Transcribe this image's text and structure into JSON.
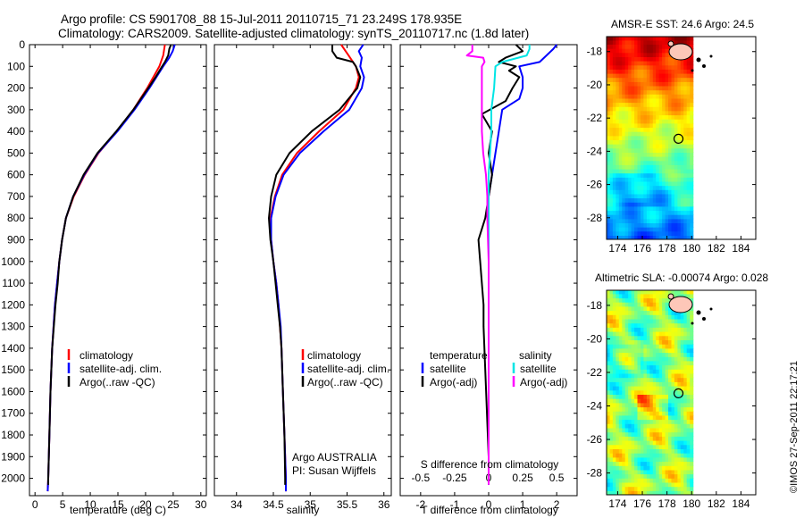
{
  "title": {
    "line1": "Argo profile: CS 5901708_88 15-Jul-2011 20110715_71 23.249S 178.935E",
    "line2": "Climatology: CARS2009. Satellite-adjusted climatology: synTS_20110717.nc (1.8d later)"
  },
  "colors": {
    "climatology": "#ff0000",
    "satellite": "#0000ff",
    "argo": "#000000",
    "salinity_satellite": "#00e5e5",
    "salinity_argo": "#ff00ff"
  },
  "stamp": "©IMOS 27-Sep-2011 22:17:21",
  "chart_data": [
    {
      "type": "line",
      "id": "temperature-profile",
      "xlabel": "temperature (deg C)",
      "ylabel": "depth",
      "xlim": [
        -1,
        31
      ],
      "ylim": [
        2080,
        0
      ],
      "x_ticks": [
        0,
        5,
        10,
        15,
        20,
        25,
        30
      ],
      "y_ticks": [
        0,
        100,
        200,
        300,
        400,
        500,
        600,
        700,
        800,
        900,
        1000,
        1100,
        1200,
        1300,
        1400,
        1500,
        1600,
        1700,
        1800,
        1900,
        2000
      ],
      "legend": [
        "climatology",
        "satellite-adj. clim.",
        "Argo(..raw -QC)"
      ],
      "series": [
        {
          "name": "climatology",
          "color": "#ff0000",
          "depth": [
            0,
            50,
            100,
            200,
            300,
            400,
            500,
            600,
            700,
            800,
            900,
            1000,
            1100,
            1200,
            1400,
            1600,
            1800,
            2000,
            2060
          ],
          "values": [
            23.5,
            23.2,
            22.5,
            20.3,
            17.8,
            14.8,
            11.5,
            9.0,
            7.0,
            5.6,
            4.9,
            4.4,
            4.0,
            3.6,
            3.1,
            2.8,
            2.6,
            2.4,
            2.3
          ]
        },
        {
          "name": "satellite-adj. clim.",
          "color": "#0000ff",
          "depth": [
            0,
            30,
            60,
            100,
            200,
            300,
            400,
            500,
            600,
            700,
            800,
            900,
            1000,
            1100,
            1200,
            1400,
            1600,
            1800,
            2000,
            2060
          ],
          "values": [
            25.3,
            24.9,
            24.3,
            23.2,
            20.7,
            18.0,
            14.9,
            11.4,
            8.9,
            6.9,
            5.6,
            4.9,
            4.4,
            4.0,
            3.6,
            3.1,
            2.8,
            2.6,
            2.4,
            2.3
          ]
        },
        {
          "name": "Argo(..raw -QC)",
          "color": "#000000",
          "depth": [
            0,
            20,
            50,
            80,
            100,
            150,
            200,
            300,
            400,
            500,
            600,
            700,
            800,
            900,
            1000,
            1100,
            1200,
            1400,
            1600,
            1800,
            2000,
            2030
          ],
          "values": [
            24.6,
            24.3,
            24.1,
            23.5,
            23.0,
            21.8,
            20.5,
            17.8,
            14.7,
            11.3,
            8.8,
            6.9,
            5.6,
            4.9,
            4.4,
            4.1,
            3.7,
            3.1,
            2.8,
            2.6,
            2.4,
            2.4
          ]
        }
      ]
    },
    {
      "type": "line",
      "id": "salinity-profile",
      "xlabel": "salinity",
      "xlim": [
        33.7,
        36.1
      ],
      "ylim": [
        2080,
        0
      ],
      "x_ticks": [
        34,
        34.5,
        35,
        35.5,
        36
      ],
      "legend": [
        "climatology",
        "satellite-adj. clim.",
        "Argo(..raw -QC)"
      ],
      "annotation": [
        "Argo AUSTRALIA",
        "PI: Susan Wijffels"
      ],
      "series": [
        {
          "name": "climatology",
          "color": "#ff0000",
          "depth": [
            0,
            50,
            100,
            150,
            200,
            300,
            400,
            500,
            600,
            700,
            800,
            900,
            1000,
            1100,
            1200,
            1300,
            1400,
            1600,
            1800,
            2000,
            2060
          ],
          "values": [
            35.42,
            35.52,
            35.62,
            35.66,
            35.62,
            35.45,
            35.12,
            34.82,
            34.62,
            34.52,
            34.46,
            34.47,
            34.5,
            34.54,
            34.57,
            34.59,
            34.61,
            34.63,
            34.65,
            34.67,
            34.67
          ]
        },
        {
          "name": "satellite-adj. clim.",
          "color": "#0000ff",
          "depth": [
            0,
            30,
            60,
            100,
            150,
            200,
            300,
            400,
            500,
            600,
            700,
            800,
            900,
            1000,
            1100,
            1200,
            1300,
            1400,
            1600,
            1800,
            2000,
            2060
          ],
          "values": [
            35.72,
            35.66,
            35.7,
            35.68,
            35.73,
            35.7,
            35.53,
            35.18,
            34.86,
            34.64,
            34.53,
            34.47,
            34.47,
            34.5,
            34.54,
            34.57,
            34.6,
            34.61,
            34.63,
            34.65,
            34.67,
            34.67
          ]
        },
        {
          "name": "Argo(..raw -QC)",
          "color": "#000000",
          "depth": [
            0,
            30,
            60,
            80,
            100,
            150,
            200,
            300,
            400,
            500,
            600,
            700,
            800,
            900,
            1000,
            1100,
            1200,
            1300,
            1400,
            1600,
            1800,
            2000,
            2030
          ],
          "values": [
            35.3,
            35.3,
            35.36,
            35.58,
            35.62,
            35.68,
            35.64,
            35.4,
            35.02,
            34.72,
            34.54,
            34.47,
            34.44,
            34.46,
            34.5,
            34.53,
            34.56,
            34.59,
            34.61,
            34.63,
            34.65,
            34.66,
            34.66
          ]
        }
      ]
    },
    {
      "type": "line",
      "id": "difference-profile",
      "xlabel": "T difference from climatology",
      "xlabel_top": "S difference from climatology",
      "xlim": [
        -2.6,
        2.6
      ],
      "ylim": [
        2080,
        0
      ],
      "x_ticks": [
        -2,
        -1,
        0,
        1,
        2
      ],
      "x_ticks_top": [
        -0.5,
        -0.25,
        0,
        0.25,
        0.5
      ],
      "s_scale": 4,
      "legend_temperature": {
        "header": "temperature",
        "items": [
          "satellite",
          "Argo(-adj)"
        ]
      },
      "legend_salinity": {
        "header": "salinity",
        "items": [
          "satellite",
          "Argo(-adj)"
        ]
      },
      "series": [
        {
          "name": "T satellite",
          "color": "#0000ff",
          "depth": [
            0,
            20,
            50,
            80,
            100,
            150,
            200,
            250,
            300,
            400,
            500,
            600,
            700,
            800
          ],
          "values": [
            2.0,
            1.9,
            1.7,
            1.5,
            0.9,
            1.0,
            1.0,
            0.9,
            0.4,
            0.3,
            0.2,
            0.1,
            0.0,
            0.0
          ]
        },
        {
          "name": "T Argo(-adj)",
          "color": "#000000",
          "depth": [
            0,
            30,
            60,
            80,
            100,
            120,
            150,
            200,
            260,
            320,
            400,
            500,
            600,
            700,
            800,
            900,
            1000,
            1100,
            1200,
            1300,
            1500,
            1700,
            1900,
            2030
          ],
          "values": [
            0.8,
            1.0,
            0.5,
            0.3,
            0.8,
            0.6,
            0.9,
            0.7,
            0.5,
            -0.2,
            0.1,
            0.0,
            0.1,
            0.0,
            -0.1,
            -0.3,
            -0.25,
            -0.2,
            -0.15,
            -0.15,
            -0.1,
            -0.05,
            0.0,
            0.0
          ]
        },
        {
          "name": "S satellite",
          "color": "#00e5e5",
          "depth": [
            0,
            20,
            50,
            80,
            100,
            200,
            300,
            400,
            500,
            600,
            700,
            800,
            1000,
            1200,
            1500,
            1800,
            2030
          ],
          "values": [
            0.3,
            0.3,
            0.28,
            0.1,
            0.05,
            0.04,
            0.02,
            0.02,
            0.01,
            0.0,
            0.0,
            0.0,
            0.0,
            0.0,
            0.0,
            0.0,
            0.0
          ]
        },
        {
          "name": "S Argo(-adj)",
          "color": "#ff00ff",
          "depth": [
            0,
            30,
            50,
            60,
            80,
            100,
            200,
            300,
            400,
            500,
            600,
            700,
            800,
            1000,
            1200,
            1500,
            1800,
            2030
          ],
          "values": [
            -0.12,
            -0.12,
            -0.16,
            -0.04,
            -0.03,
            -0.05,
            -0.05,
            -0.05,
            -0.05,
            -0.04,
            -0.02,
            -0.01,
            -0.01,
            0.0,
            0.0,
            0.0,
            0.0,
            0.0
          ]
        }
      ]
    },
    {
      "type": "heatmap",
      "id": "sst-map",
      "title": "AMSR-E SST: 24.6  Argo: 24.5",
      "x_ticks": [
        174,
        176,
        178,
        180,
        182,
        184
      ],
      "y_ticks": [
        -18,
        -20,
        -22,
        -24,
        -26,
        -28
      ],
      "xlim": [
        173.1,
        185.2
      ],
      "ylim": [
        -29.3,
        -17.1
      ],
      "data_xmax": 180,
      "float_position": {
        "lon": 178.935,
        "lat": -23.249
      }
    },
    {
      "type": "heatmap",
      "id": "sla-map",
      "title": "Altimetric SLA: -0.00074  Argo: 0.028",
      "x_ticks": [
        174,
        176,
        178,
        180,
        182,
        184
      ],
      "y_ticks": [
        -18,
        -20,
        -22,
        -24,
        -26,
        -28
      ],
      "xlim": [
        173.1,
        185.2
      ],
      "ylim": [
        -29.3,
        -17.1
      ],
      "data_xmax": 180,
      "float_position": {
        "lon": 178.935,
        "lat": -23.249
      }
    }
  ]
}
